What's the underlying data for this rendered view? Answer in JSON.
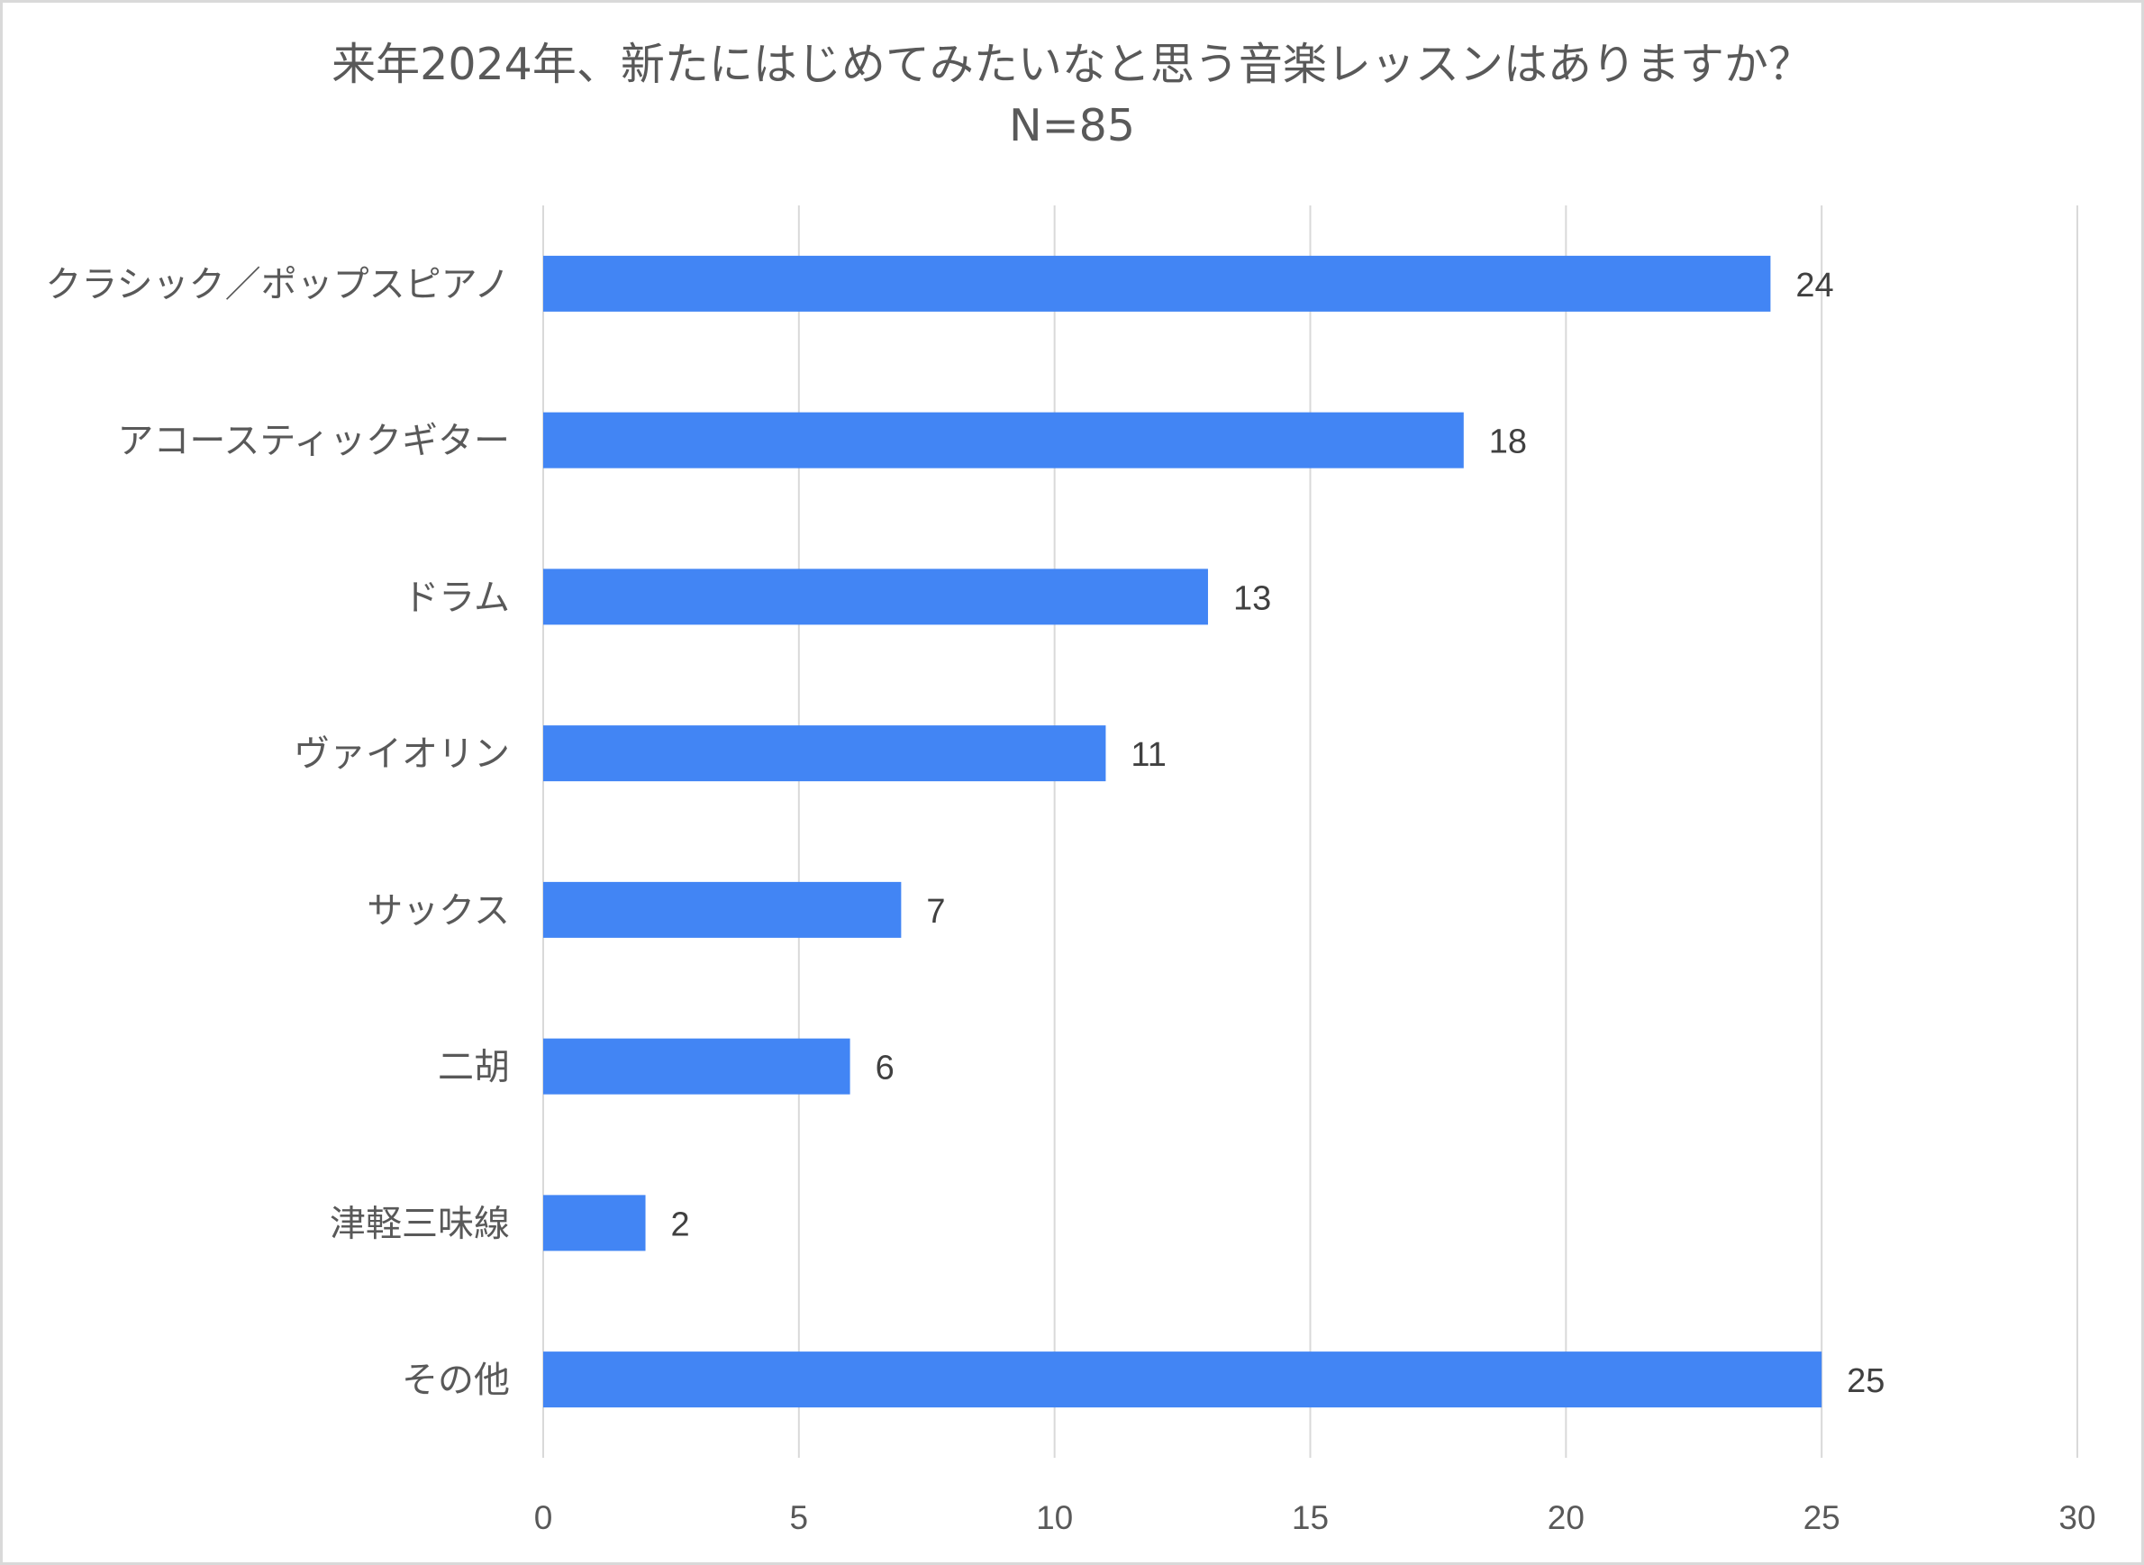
{
  "chart_data": {
    "type": "bar",
    "orientation": "horizontal",
    "title": "来年2024年、新たにはじめてみたいなと思う音楽レッスンはありますか？",
    "subtitle": "N=85",
    "categories": [
      "クラシック／ポップスピアノ",
      "アコースティックギター",
      "ドラム",
      "ヴァイオリン",
      "サックス",
      "二胡",
      "津軽三味線",
      "その他"
    ],
    "values": [
      24,
      18,
      13,
      11,
      7,
      6,
      2,
      25
    ],
    "xlim": [
      0,
      30
    ],
    "xticks": [
      0,
      5,
      10,
      15,
      20,
      25,
      30
    ],
    "grid": true,
    "data_labels": true,
    "bar_color": "#4285f4"
  }
}
